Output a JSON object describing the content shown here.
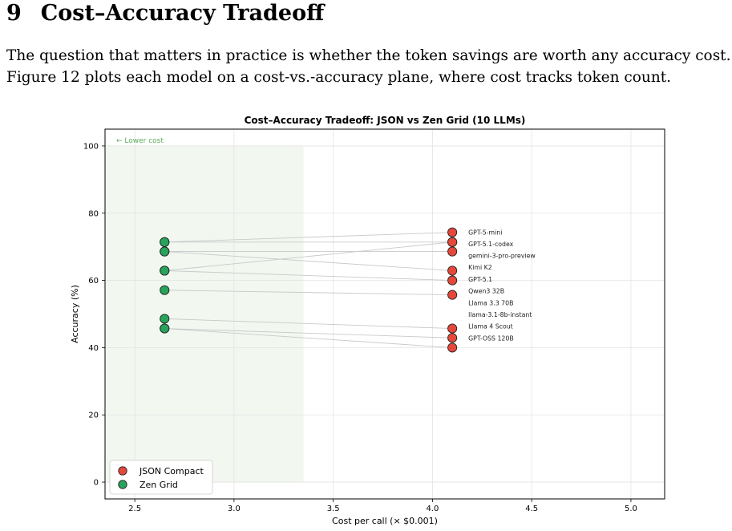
{
  "section": {
    "number": "9",
    "title": "Cost–Accuracy Tradeoff"
  },
  "paragraph": {
    "line1": "The question that matters in practice is whether the token savings are worth any accuracy cost.",
    "line2": "Figure 12 plots each model on a cost-vs.-accuracy plane, where cost tracks token count."
  },
  "chart_data": {
    "type": "scatter",
    "title": "Cost–Accuracy Tradeoff: JSON vs Zen Grid (10 LLMs)",
    "xlabel": "Cost per call (× $0.001)",
    "ylabel": "Accuracy (%)",
    "xlim": [
      2.35,
      5.17
    ],
    "ylim": [
      -5,
      105
    ],
    "xticks": [
      2.5,
      3.0,
      3.5,
      4.0,
      4.5,
      5.0
    ],
    "xtick_labels": [
      "2.5",
      "3.0",
      "3.5",
      "4.0",
      "4.5",
      "5.0"
    ],
    "yticks": [
      0,
      20,
      40,
      60,
      80,
      100
    ],
    "ytick_labels": [
      "0",
      "20",
      "40",
      "60",
      "80",
      "100"
    ],
    "grid": true,
    "legend_position": "bottom-left",
    "region": {
      "label": "← Lower cost",
      "x": [
        2.35,
        3.35
      ],
      "y": [
        0,
        100
      ],
      "color": "#edf3ea"
    },
    "colors": {
      "json": "#e5483b",
      "zen": "#27a35c",
      "connector": "#c9c9c9",
      "region_text": "#5cad5c"
    },
    "series": [
      {
        "name": "JSON Compact",
        "x": 4.1,
        "points": [
          {
            "model": "GPT-5-mini",
            "y": 74.3
          },
          {
            "model": "GPT-5.1-codex",
            "y": 71.4
          },
          {
            "model": "gemini-3-pro-preview",
            "y": 68.6
          },
          {
            "model": "Kimi K2",
            "y": 62.9
          },
          {
            "model": "GPT-5.1",
            "y": 60.0
          },
          {
            "model": "Qwen3 32B",
            "y": 55.7
          },
          {
            "model": "Llama 3.3 70B",
            "y": 71.4
          },
          {
            "model": "llama-3.1-8b-instant",
            "y": 45.7
          },
          {
            "model": "Llama 4 Scout",
            "y": 42.9
          },
          {
            "model": "GPT-OSS 120B",
            "y": 40.0
          }
        ]
      },
      {
        "name": "Zen Grid",
        "x": 2.65,
        "points": [
          {
            "model": "GPT-5-mini",
            "y": 71.4
          },
          {
            "model": "GPT-5.1-codex",
            "y": 71.4
          },
          {
            "model": "gemini-3-pro-preview",
            "y": 68.6
          },
          {
            "model": "Kimi K2",
            "y": 68.6
          },
          {
            "model": "GPT-5.1",
            "y": 62.9
          },
          {
            "model": "Qwen3 32B",
            "y": 57.1
          },
          {
            "model": "Llama 3.3 70B",
            "y": 62.9
          },
          {
            "model": "llama-3.1-8b-instant",
            "y": 48.6
          },
          {
            "model": "Llama 4 Scout",
            "y": 45.7
          },
          {
            "model": "GPT-OSS 120B",
            "y": 45.7
          }
        ]
      }
    ],
    "labels": [
      {
        "text": "GPT-5-mini",
        "y": 74.3
      },
      {
        "text": "GPT-5.1-codex",
        "y": 70.9
      },
      {
        "text": "gemini-3-pro-preview",
        "y": 67.4
      },
      {
        "text": "Kimi K2",
        "y": 63.9
      },
      {
        "text": "GPT-5.1",
        "y": 60.4
      },
      {
        "text": "Qwen3 32B",
        "y": 56.9
      },
      {
        "text": "Llama 3.3 70B",
        "y": 53.4
      },
      {
        "text": "llama-3.1-8b-instant",
        "y": 49.9
      },
      {
        "text": "Llama 4 Scout",
        "y": 46.4
      },
      {
        "text": "GPT-OSS 120B",
        "y": 42.9
      }
    ]
  }
}
